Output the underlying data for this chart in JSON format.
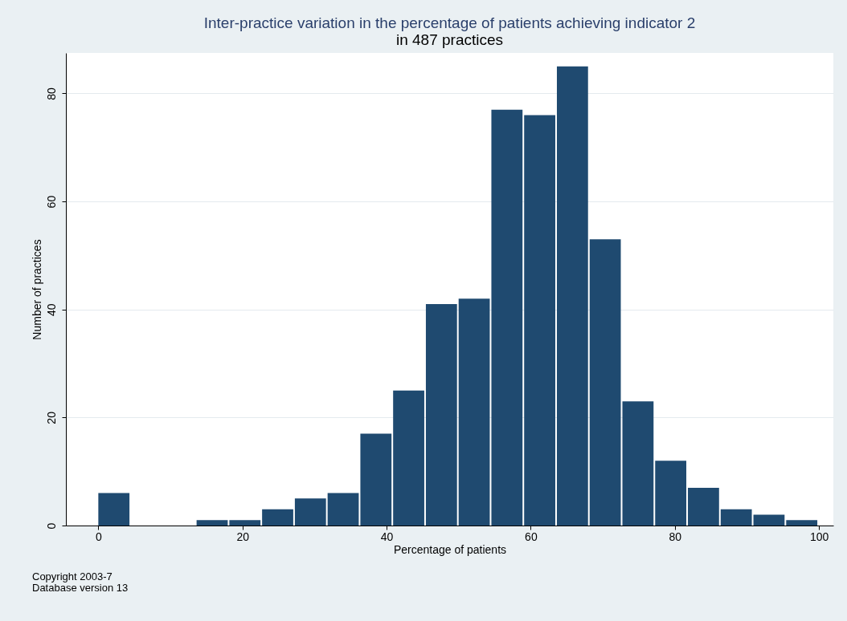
{
  "chart_data": {
    "type": "histogram",
    "title": "Inter-practice variation in the percentage of patients achieving indicator 2",
    "subtitle": "in 487 practices",
    "xlabel": "Percentage of patients",
    "ylabel": "Number of practices",
    "bins": [
      0,
      4.545,
      9.091,
      13.636,
      18.182,
      22.727,
      27.273,
      31.818,
      36.364,
      40.909,
      45.455,
      50,
      54.545,
      59.091,
      63.636,
      68.182,
      72.727,
      77.273,
      81.818,
      86.364,
      90.909,
      95.455,
      100
    ],
    "values": [
      6,
      0,
      0,
      1,
      1,
      3,
      5,
      6,
      17,
      25,
      41,
      42,
      77,
      76,
      85,
      53,
      23,
      12,
      7,
      3,
      2,
      1
    ],
    "color": "#1f4a70",
    "xlim": [
      -4.5,
      102
    ],
    "ylim": [
      0,
      87.5
    ],
    "xticks": [
      0,
      20,
      40,
      60,
      80,
      100
    ],
    "yticks": [
      0,
      20,
      40,
      60,
      80
    ],
    "grid": "y",
    "annotations": [
      "Copyright 2003-7",
      "Database version 13"
    ]
  }
}
